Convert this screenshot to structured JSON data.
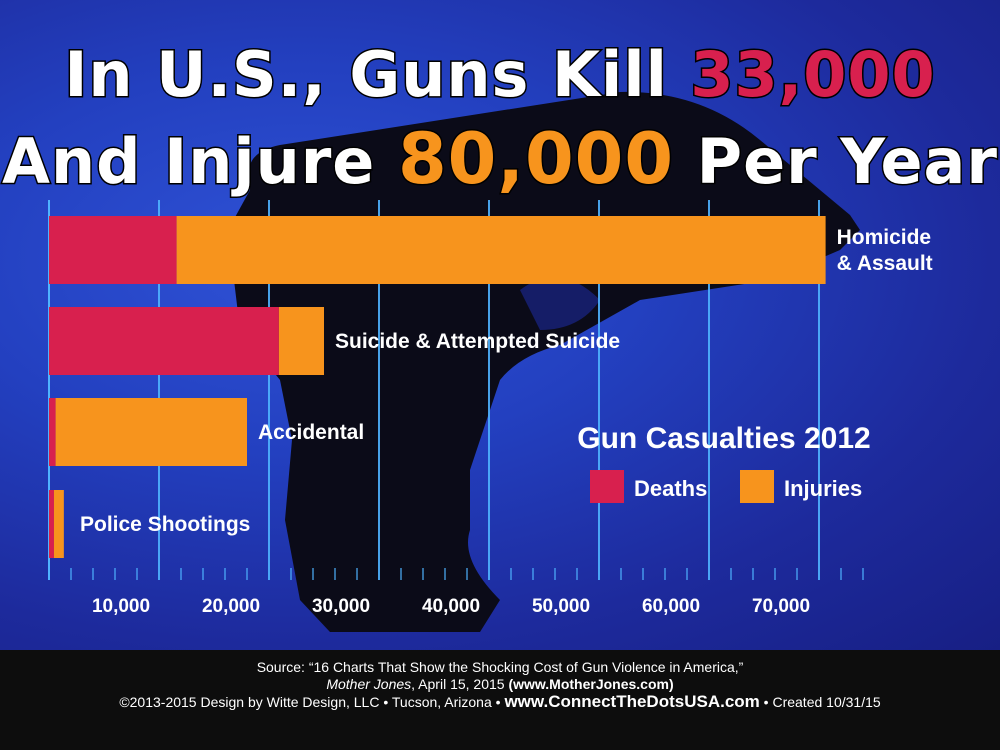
{
  "title": {
    "line1_prefix": "In U.S., Guns Kill ",
    "line1_number": "33,000",
    "line2_prefix": "And Injure ",
    "line2_number": "80,000",
    "line2_suffix": " Per Year"
  },
  "chart_data": {
    "type": "bar",
    "orientation": "horizontal",
    "stacked": true,
    "title": "Gun Casualties 2012",
    "categories": [
      "Homicide\n& Assault",
      "Suicide & Attempted Suicide",
      "Accidental",
      "Police Shootings"
    ],
    "series": [
      {
        "name": "Deaths",
        "color": "#d8204e",
        "values": [
          11600,
          20900,
          600,
          450
        ]
      },
      {
        "name": "Injuries",
        "color": "#f7941d",
        "values": [
          59000,
          4100,
          17400,
          900
        ]
      }
    ],
    "xticks": [
      "10,000",
      "20,000",
      "30,000",
      "40,000",
      "50,000",
      "60,000",
      "70,000"
    ],
    "xtick_values": [
      10000,
      20000,
      30000,
      40000,
      50000,
      60000,
      70000
    ],
    "xlim": [
      0,
      75000
    ],
    "grid": true,
    "legend_position": "right"
  },
  "footer": {
    "source_line": "Source: “16 Charts That Show the Shocking Cost of Gun Violence in America,”",
    "publication": "Mother Jones",
    "pub_date": ", April 15, 2015 ",
    "pub_url": "(www.MotherJones.com)",
    "copyright": "©2013-2015 Design by Witte Design, LLC • Tucson, Arizona • ",
    "site_url": "www.ConnectTheDotsUSA.com",
    "created": " • Created 10/31/15"
  }
}
